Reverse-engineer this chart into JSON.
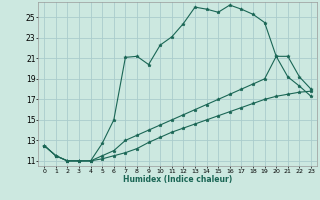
{
  "xlabel": "Humidex (Indice chaleur)",
  "background_color": "#cce8e0",
  "grid_color": "#aacccc",
  "line_color": "#1a6655",
  "marker": "*",
  "xlim": [
    -0.5,
    23.5
  ],
  "ylim": [
    10.5,
    26.5
  ],
  "xticks": [
    0,
    1,
    2,
    3,
    4,
    5,
    6,
    7,
    8,
    9,
    10,
    11,
    12,
    13,
    14,
    15,
    16,
    17,
    18,
    19,
    20,
    21,
    22,
    23
  ],
  "yticks": [
    11,
    13,
    15,
    17,
    19,
    21,
    23,
    25
  ],
  "line1_x": [
    0,
    1,
    2,
    3,
    4,
    5,
    6,
    7,
    8,
    9,
    10,
    11,
    12,
    13,
    14,
    15,
    16,
    17,
    18,
    19,
    20,
    21,
    22,
    23
  ],
  "line1_y": [
    12.5,
    11.5,
    11.0,
    11.0,
    11.0,
    12.7,
    15.0,
    21.1,
    21.2,
    20.4,
    22.3,
    23.1,
    24.4,
    26.0,
    25.8,
    25.5,
    26.2,
    25.8,
    25.3,
    24.5,
    21.2,
    19.2,
    18.3,
    17.3
  ],
  "line2_x": [
    0,
    1,
    2,
    3,
    4,
    5,
    6,
    7,
    8,
    9,
    10,
    11,
    12,
    13,
    14,
    15,
    16,
    17,
    18,
    19,
    20,
    21,
    22,
    23
  ],
  "line2_y": [
    12.5,
    11.5,
    11.0,
    11.0,
    11.0,
    11.5,
    12.0,
    13.0,
    13.5,
    14.0,
    14.5,
    15.0,
    15.5,
    16.0,
    16.5,
    17.0,
    17.5,
    18.0,
    18.5,
    19.0,
    21.2,
    21.2,
    19.2,
    18.0
  ],
  "line3_x": [
    0,
    1,
    2,
    3,
    4,
    5,
    6,
    7,
    8,
    9,
    10,
    11,
    12,
    13,
    14,
    15,
    16,
    17,
    18,
    19,
    20,
    21,
    22,
    23
  ],
  "line3_y": [
    12.5,
    11.5,
    11.0,
    11.0,
    11.0,
    11.2,
    11.5,
    11.8,
    12.2,
    12.8,
    13.3,
    13.8,
    14.2,
    14.6,
    15.0,
    15.4,
    15.8,
    16.2,
    16.6,
    17.0,
    17.3,
    17.5,
    17.7,
    17.8
  ]
}
